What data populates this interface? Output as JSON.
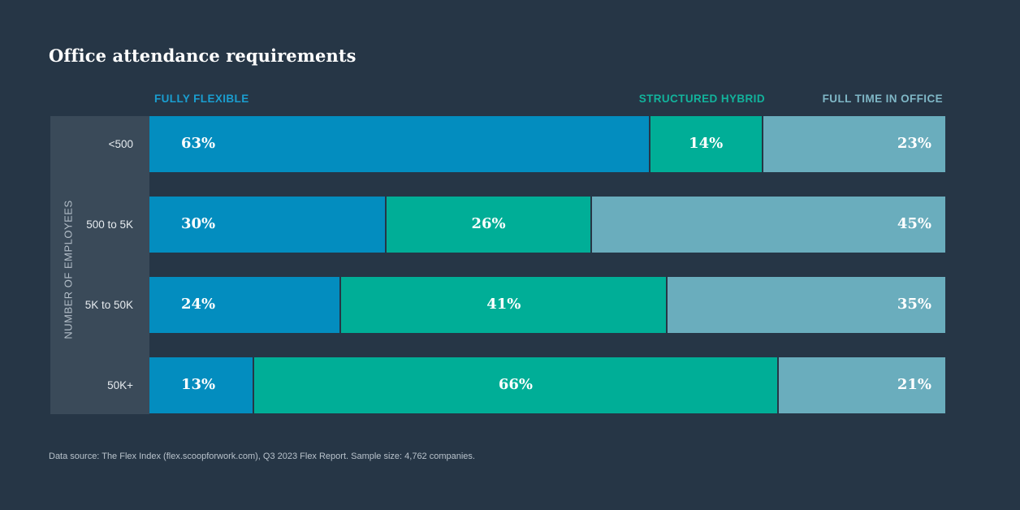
{
  "chart_data": {
    "type": "bar",
    "orientation": "horizontal",
    "stacked": true,
    "title": "Office attendance requirements",
    "ylabel": "NUMBER OF EMPLOYEES",
    "xlabel": "",
    "categories": [
      "<500",
      "500 to 5K",
      "5K to 50K",
      "50K+"
    ],
    "series": [
      {
        "name": "FULLY FLEXIBLE",
        "values": [
          63,
          30,
          24,
          13
        ],
        "color": "#038dbf"
      },
      {
        "name": "STRUCTURED HYBRID",
        "values": [
          14,
          26,
          41,
          66
        ],
        "color": "#00ae97"
      },
      {
        "name": "FULL TIME IN OFFICE",
        "values": [
          23,
          45,
          35,
          21
        ],
        "color": "#6aadbd"
      }
    ],
    "legend_colors": [
      "#1a9ed0",
      "#12b39c",
      "#7fb7c6"
    ],
    "value_suffix": "%",
    "legend_position": "top",
    "grid": false,
    "footnote": "Data source: The Flex Index (flex.scoopforwork.com), Q3 2023 Flex Report. Sample size: 4,762 companies."
  }
}
